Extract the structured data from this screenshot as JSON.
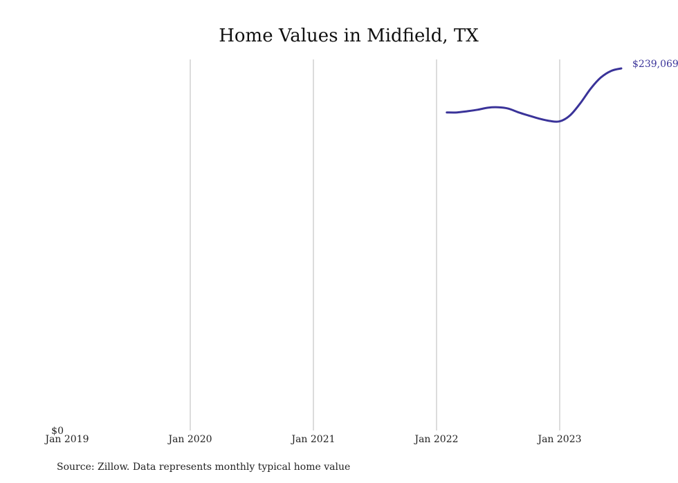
{
  "chart_data": {
    "type": "line",
    "title": "Home Values in Midfield, TX",
    "xlabel": "",
    "ylabel": "",
    "x_ticks": [
      "Jan 2019",
      "Jan 2020",
      "Jan 2021",
      "Jan 2022",
      "Jan 2023"
    ],
    "y_ticks": [
      "$0"
    ],
    "xlim": [
      "2019-01",
      "2023-10"
    ],
    "ylim": [
      0,
      245000
    ],
    "grid": "vertical at year ticks",
    "legend": "none",
    "series": [
      {
        "color": "#3a3399",
        "end_label": "$239,069",
        "points": [
          {
            "x": "2022-02",
            "y": 210000
          },
          {
            "x": "2022-03",
            "y": 210000
          },
          {
            "x": "2022-04",
            "y": 210800
          },
          {
            "x": "2022-05",
            "y": 211800
          },
          {
            "x": "2022-06",
            "y": 213100
          },
          {
            "x": "2022-07",
            "y": 213400
          },
          {
            "x": "2022-08",
            "y": 212500
          },
          {
            "x": "2022-09",
            "y": 210000
          },
          {
            "x": "2022-10",
            "y": 207900
          },
          {
            "x": "2022-11",
            "y": 205900
          },
          {
            "x": "2022-12",
            "y": 204400
          },
          {
            "x": "2023-01",
            "y": 204100
          },
          {
            "x": "2023-02",
            "y": 208000
          },
          {
            "x": "2023-03",
            "y": 216000
          },
          {
            "x": "2023-04",
            "y": 225500
          },
          {
            "x": "2023-05",
            "y": 233000
          },
          {
            "x": "2023-06",
            "y": 237400
          },
          {
            "x": "2023-07",
            "y": 239069
          }
        ]
      }
    ]
  },
  "footer": {
    "source": "Source: Zillow. Data represents monthly typical home value"
  }
}
